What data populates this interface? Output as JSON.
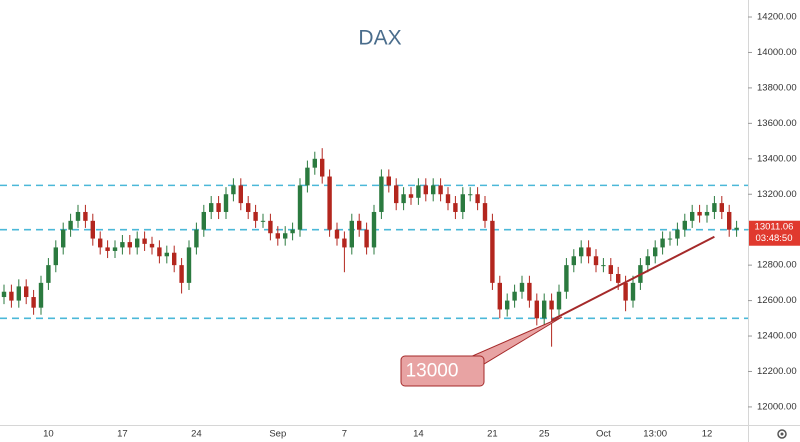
{
  "chart_data": {
    "type": "candlestick",
    "title": "DAX",
    "categories": [
      null,
      null,
      null,
      null,
      null,
      null,
      "10",
      null,
      null,
      null,
      null,
      null,
      null,
      null,
      null,
      null,
      "17",
      null,
      null,
      null,
      null,
      null,
      null,
      null,
      null,
      null,
      "24",
      null,
      null,
      null,
      null,
      null,
      null,
      null,
      null,
      null,
      null,
      "Sep",
      null,
      null,
      null,
      null,
      null,
      null,
      null,
      null,
      "7",
      null,
      null,
      null,
      null,
      null,
      null,
      null,
      null,
      null,
      "14",
      null,
      null,
      null,
      null,
      null,
      null,
      null,
      null,
      null,
      "21",
      null,
      null,
      null,
      null,
      null,
      null,
      "25",
      null,
      null,
      null,
      null,
      null,
      null,
      null,
      "Oct",
      null,
      null,
      null,
      null,
      null,
      null,
      "13:00",
      null,
      null,
      null,
      null,
      null,
      null,
      "12",
      null,
      null,
      null,
      null
    ],
    "open": [
      12620,
      12650,
      12600,
      12680,
      12620,
      12560,
      12700,
      12800,
      12900,
      13000,
      13050,
      13100,
      13050,
      12950,
      12900,
      12880,
      12900,
      12930,
      12900,
      12950,
      12920,
      12900,
      12850,
      12870,
      12800,
      12700,
      12900,
      13000,
      13100,
      13150,
      13100,
      13200,
      13250,
      13150,
      13100,
      13050,
      13050,
      12980,
      12950,
      12980,
      13000,
      13250,
      13350,
      13400,
      13300,
      13000,
      12950,
      12900,
      13050,
      13000,
      12900,
      13100,
      13300,
      13250,
      13150,
      13200,
      13180,
      13250,
      13200,
      13250,
      13200,
      13150,
      13100,
      13200,
      13200,
      13150,
      13050,
      12700,
      12550,
      12600,
      12650,
      12700,
      12600,
      12500,
      12600,
      12550,
      12650,
      12800,
      12850,
      12900,
      12850,
      12800,
      12800,
      12750,
      12700,
      12600,
      12700,
      12800,
      12850,
      12900,
      12950,
      12950,
      13000,
      13050,
      13100,
      13080,
      13100,
      13150,
      13100,
      13000
    ],
    "high": [
      12690,
      12690,
      12720,
      12720,
      12660,
      12740,
      12840,
      12940,
      13040,
      13090,
      13140,
      13140,
      13090,
      12990,
      12940,
      12940,
      12970,
      12970,
      12990,
      12990,
      12960,
      12940,
      12910,
      12910,
      12840,
      12940,
      13040,
      13140,
      13190,
      13190,
      13240,
      13290,
      13290,
      13190,
      13140,
      13090,
      13090,
      13020,
      13020,
      13040,
      13290,
      13390,
      13440,
      13460,
      13340,
      13040,
      12990,
      13090,
      13090,
      13040,
      13140,
      13340,
      13340,
      13290,
      13240,
      13240,
      13290,
      13290,
      13290,
      13290,
      13240,
      13190,
      13240,
      13240,
      13240,
      13190,
      13090,
      12740,
      12640,
      12690,
      12740,
      12740,
      12640,
      12640,
      12640,
      12690,
      12840,
      12890,
      12940,
      12940,
      12890,
      12840,
      12840,
      12790,
      12740,
      12740,
      12840,
      12890,
      12940,
      12990,
      12990,
      13040,
      13090,
      13140,
      13140,
      13140,
      13190,
      13190,
      13140,
      13050
    ],
    "low": [
      12580,
      12560,
      12560,
      12580,
      12520,
      12520,
      12660,
      12760,
      12860,
      12960,
      13010,
      13010,
      12910,
      12860,
      12840,
      12840,
      12860,
      12860,
      12860,
      12880,
      12860,
      12810,
      12810,
      12760,
      12640,
      12660,
      12860,
      12960,
      13060,
      13060,
      13060,
      13160,
      13110,
      13060,
      13010,
      13010,
      12940,
      12910,
      12910,
      12940,
      12960,
      13210,
      13310,
      13260,
      12960,
      12910,
      12760,
      12860,
      12960,
      12860,
      12860,
      13060,
      13210,
      13110,
      13110,
      13140,
      13140,
      13160,
      13160,
      13160,
      13110,
      13060,
      13060,
      13160,
      13110,
      13010,
      12660,
      12500,
      12510,
      12560,
      12610,
      12560,
      12460,
      12460,
      12340,
      12510,
      12610,
      12760,
      12810,
      12810,
      12760,
      12760,
      12710,
      12660,
      12540,
      12560,
      12660,
      12760,
      12810,
      12860,
      12910,
      12910,
      12960,
      13010,
      13040,
      13040,
      13060,
      13060,
      12960,
      12960
    ],
    "close": [
      12650,
      12600,
      12680,
      12620,
      12560,
      12700,
      12800,
      12900,
      13000,
      13050,
      13100,
      13050,
      12950,
      12900,
      12880,
      12900,
      12930,
      12900,
      12950,
      12920,
      12900,
      12850,
      12870,
      12800,
      12700,
      12900,
      13000,
      13100,
      13150,
      13100,
      13200,
      13250,
      13150,
      13100,
      13050,
      13050,
      12980,
      12950,
      12980,
      13000,
      13250,
      13350,
      13400,
      13300,
      13000,
      12950,
      12900,
      13050,
      13000,
      12900,
      13100,
      13300,
      13250,
      13150,
      13200,
      13180,
      13250,
      13200,
      13250,
      13200,
      13150,
      13100,
      13200,
      13200,
      13150,
      13050,
      12700,
      12550,
      12600,
      12650,
      12700,
      12600,
      12500,
      12600,
      12550,
      12650,
      12800,
      12850,
      12900,
      12850,
      12800,
      12800,
      12750,
      12700,
      12600,
      12700,
      12800,
      12850,
      12900,
      12950,
      12950,
      13000,
      13050,
      13100,
      13080,
      13100,
      13150,
      13100,
      13000,
      13011.06
    ],
    "up_color": "#2b7a3f",
    "down_color": "#b3261e",
    "ylim": [
      11898,
      14296
    ],
    "yticks": [
      {
        "value": 12000,
        "label": "12000.00"
      },
      {
        "value": 12200,
        "label": "12200.00"
      },
      {
        "value": 12400,
        "label": "12400.00"
      },
      {
        "value": 12600,
        "label": "12600.00"
      },
      {
        "value": 12800,
        "label": "12800.00"
      },
      {
        "value": 13000,
        "label": "13000.00"
      },
      {
        "value": 13200,
        "label": "13200.00"
      },
      {
        "value": 13400,
        "label": "13400.00"
      },
      {
        "value": 13600,
        "label": "13600.00"
      },
      {
        "value": 13800,
        "label": "13800.00"
      },
      {
        "value": 14000,
        "label": "14000.00"
      },
      {
        "value": 14200,
        "label": "14200.00"
      }
    ],
    "levels": [
      13250,
      13000,
      12500
    ],
    "level_color": "#4bb8d8",
    "trendline": {
      "x": [
        74,
        96
      ],
      "y": [
        12490,
        12960
      ],
      "color": "#a52a2a"
    },
    "annotation": "13000",
    "countdown": "03:48:50"
  }
}
